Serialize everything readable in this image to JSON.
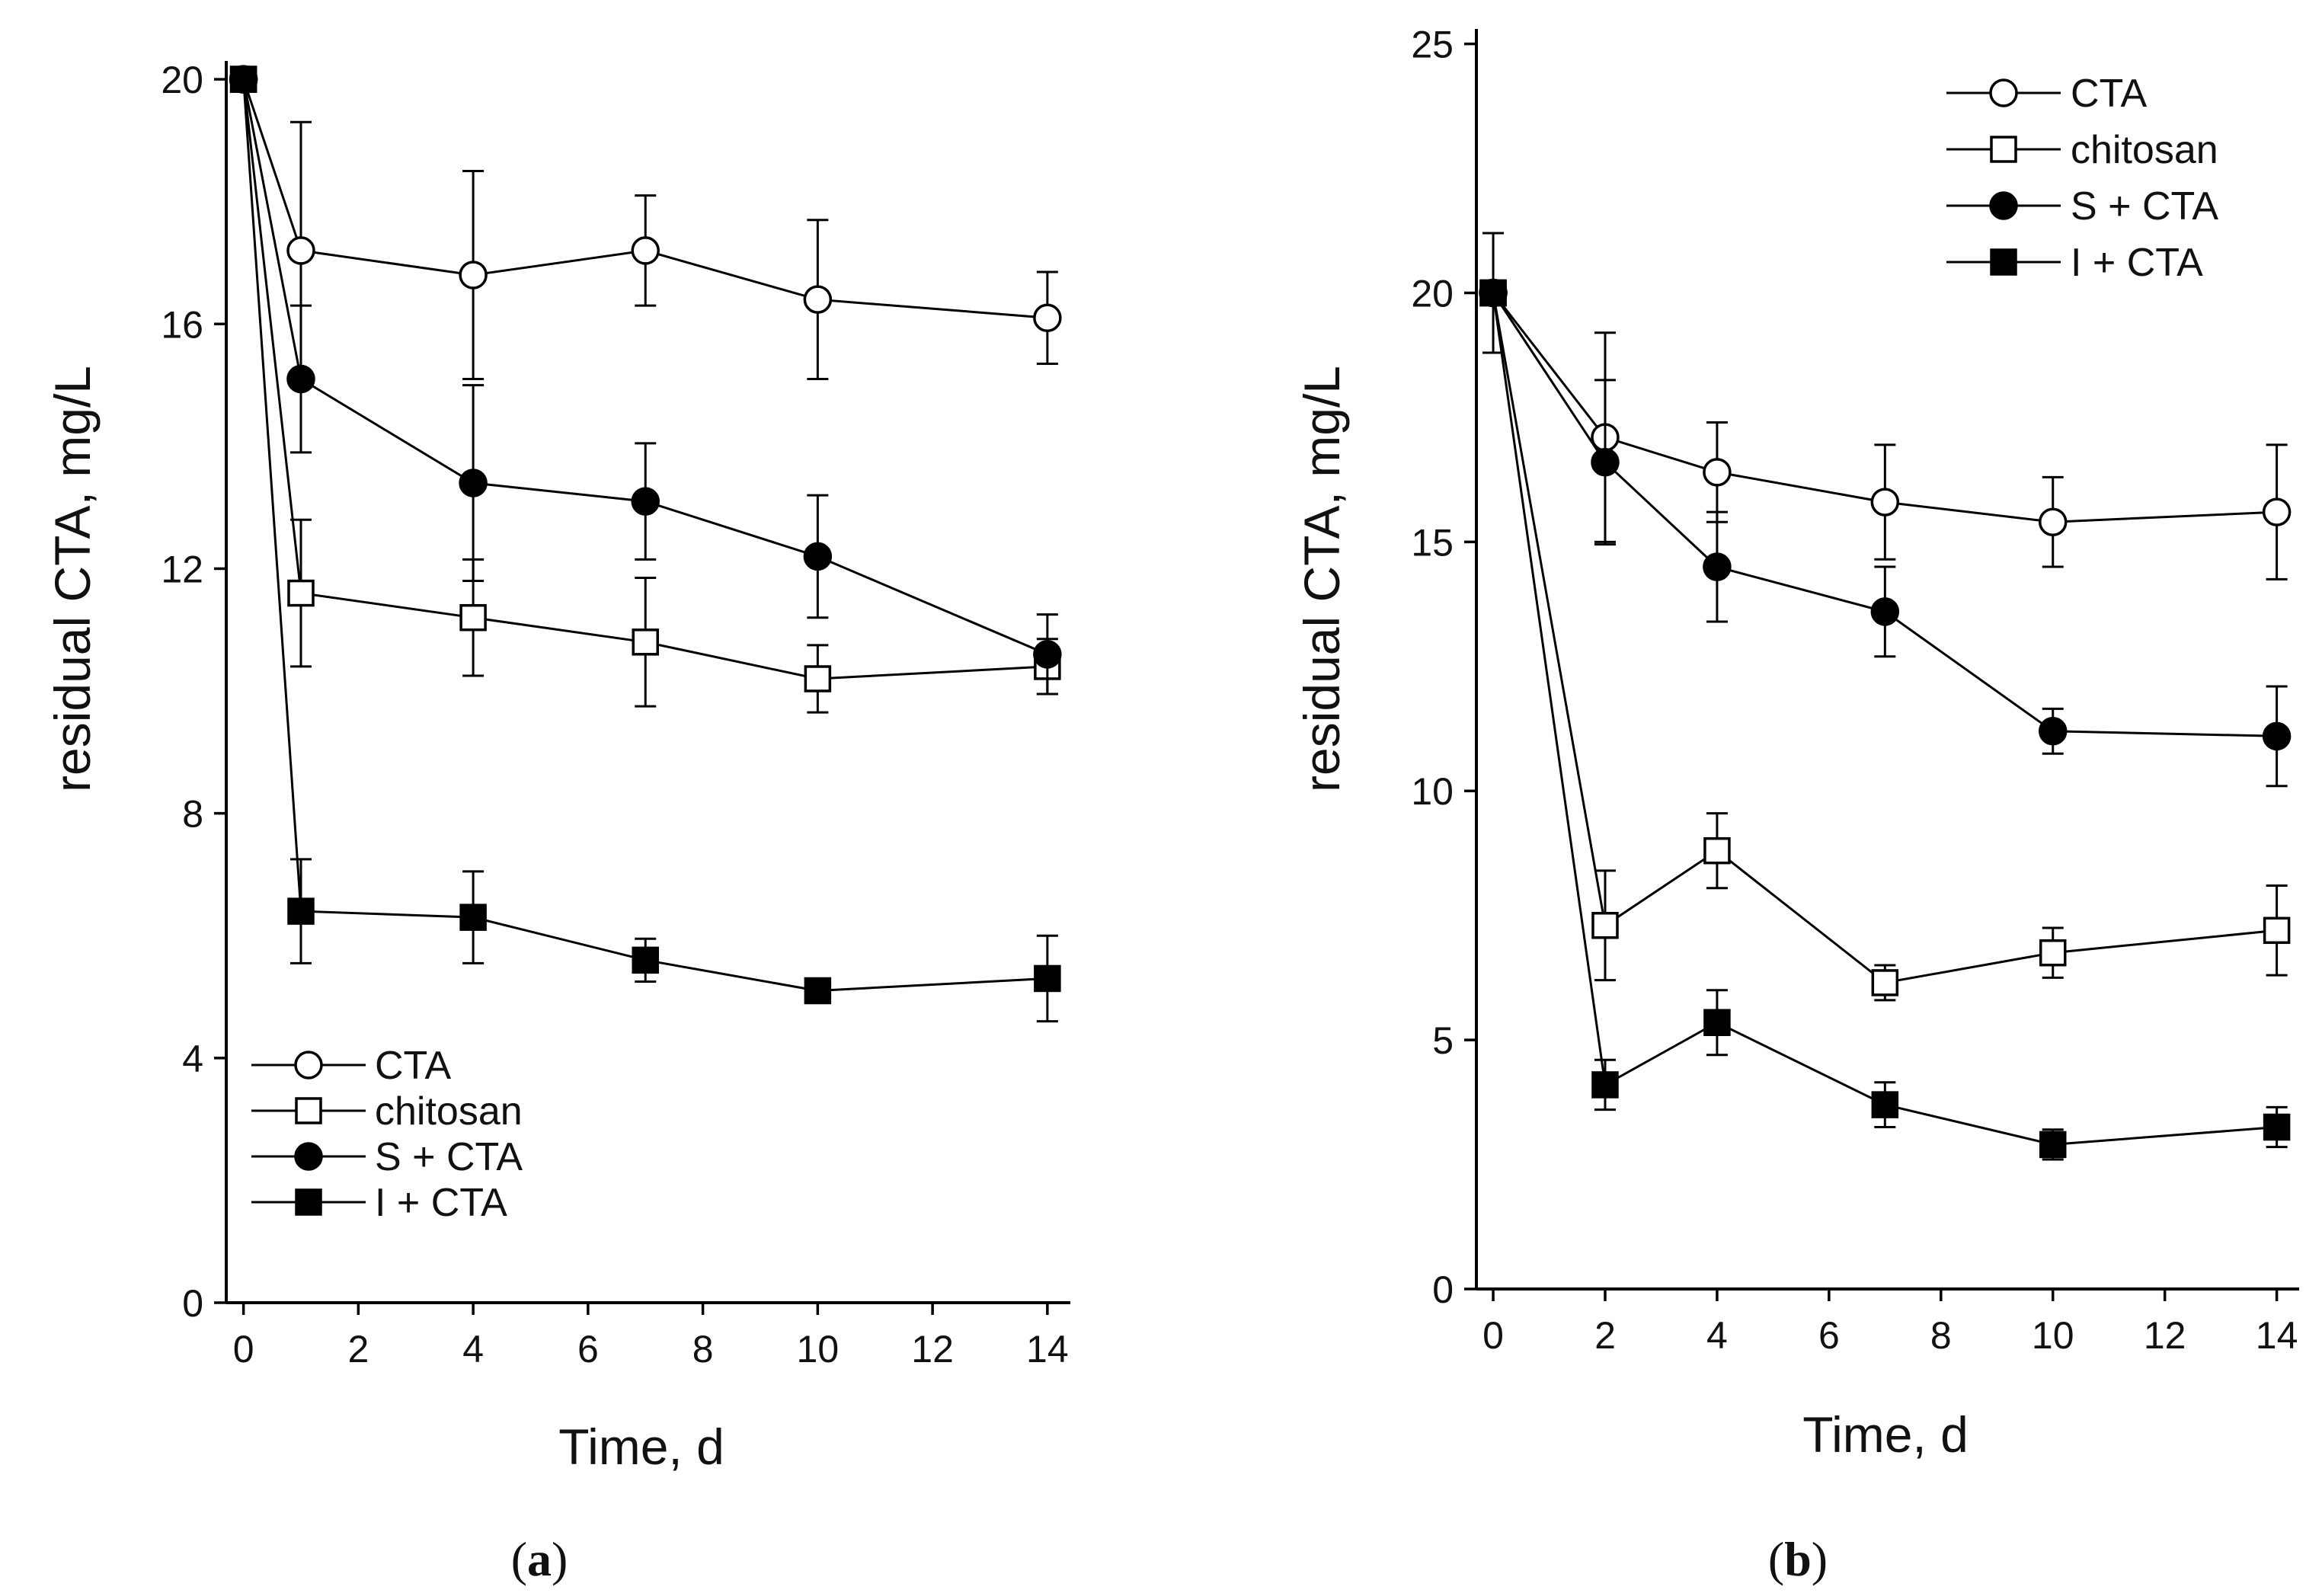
{
  "chart_data": [
    {
      "type": "line",
      "panel_label": "a",
      "xlabel": "Time, d",
      "ylabel": "residual CTA, mg/L",
      "xlim": [
        -0.3,
        14.4
      ],
      "ylim": [
        0,
        20.3
      ],
      "xticks": [
        0,
        2,
        4,
        6,
        8,
        10,
        12,
        14
      ],
      "yticks": [
        0,
        4,
        8,
        12,
        16,
        20
      ],
      "legend_position": "bottom-left",
      "error_bars": true,
      "series": [
        {
          "name": "CTA",
          "marker": "circle-open",
          "x": [
            0,
            1,
            4,
            7,
            10,
            14
          ],
          "values": [
            20,
            17.2,
            16.8,
            17.2,
            16.4,
            16.1
          ],
          "errors": [
            0,
            2.1,
            1.7,
            0.9,
            1.3,
            0.75
          ]
        },
        {
          "name": "chitosan",
          "marker": "square-open",
          "x": [
            0,
            1,
            4,
            7,
            10,
            14
          ],
          "values": [
            20,
            11.6,
            11.2,
            10.8,
            10.2,
            10.4
          ],
          "errors": [
            0,
            1.2,
            0.95,
            1.05,
            0.55,
            0.45
          ]
        },
        {
          "name": "S + CTA",
          "marker": "circle-filled",
          "x": [
            0,
            1,
            4,
            7,
            10,
            14
          ],
          "values": [
            20,
            15.1,
            13.4,
            13.1,
            12.2,
            10.6
          ],
          "errors": [
            0,
            1.2,
            1.6,
            0.95,
            1.0,
            0.65
          ]
        },
        {
          "name": "I + CTA",
          "marker": "square-filled",
          "x": [
            0,
            1,
            4,
            7,
            10,
            14
          ],
          "values": [
            20,
            6.4,
            6.3,
            5.6,
            5.1,
            5.3
          ],
          "errors": [
            0,
            0.85,
            0.75,
            0.35,
            0.15,
            0.7
          ]
        }
      ]
    },
    {
      "type": "line",
      "panel_label": "b",
      "xlabel": "Time, d",
      "ylabel": "residual CTA, mg/L",
      "xlim": [
        -0.3,
        14.4
      ],
      "ylim": [
        0,
        25.3
      ],
      "xticks": [
        0,
        2,
        4,
        6,
        8,
        10,
        12,
        14
      ],
      "yticks": [
        0,
        5,
        10,
        15,
        20,
        25
      ],
      "legend_position": "top-right",
      "error_bars": true,
      "series": [
        {
          "name": "CTA",
          "marker": "circle-open",
          "x": [
            0,
            2,
            4,
            7,
            10,
            14
          ],
          "values": [
            20,
            17.1,
            16.4,
            15.8,
            15.4,
            15.6
          ],
          "errors": [
            1.2,
            2.1,
            1.0,
            1.15,
            0.9,
            1.35
          ]
        },
        {
          "name": "chitosan",
          "marker": "square-open",
          "x": [
            0,
            2,
            4,
            7,
            10,
            14
          ],
          "values": [
            20,
            7.3,
            8.8,
            6.15,
            6.75,
            7.2
          ],
          "errors": [
            0,
            1.1,
            0.75,
            0.35,
            0.5,
            0.9
          ]
        },
        {
          "name": "S + CTA",
          "marker": "circle-filled",
          "x": [
            0,
            2,
            4,
            7,
            10,
            14
          ],
          "values": [
            20,
            16.6,
            14.5,
            13.6,
            11.2,
            11.1
          ],
          "errors": [
            0,
            1.65,
            1.1,
            0.9,
            0.45,
            1.0
          ]
        },
        {
          "name": "I + CTA",
          "marker": "square-filled",
          "x": [
            0,
            2,
            4,
            7,
            10,
            14
          ],
          "values": [
            20,
            4.1,
            5.35,
            3.7,
            2.9,
            3.25
          ],
          "errors": [
            0,
            0.5,
            0.65,
            0.45,
            0.3,
            0.4
          ]
        }
      ]
    }
  ]
}
